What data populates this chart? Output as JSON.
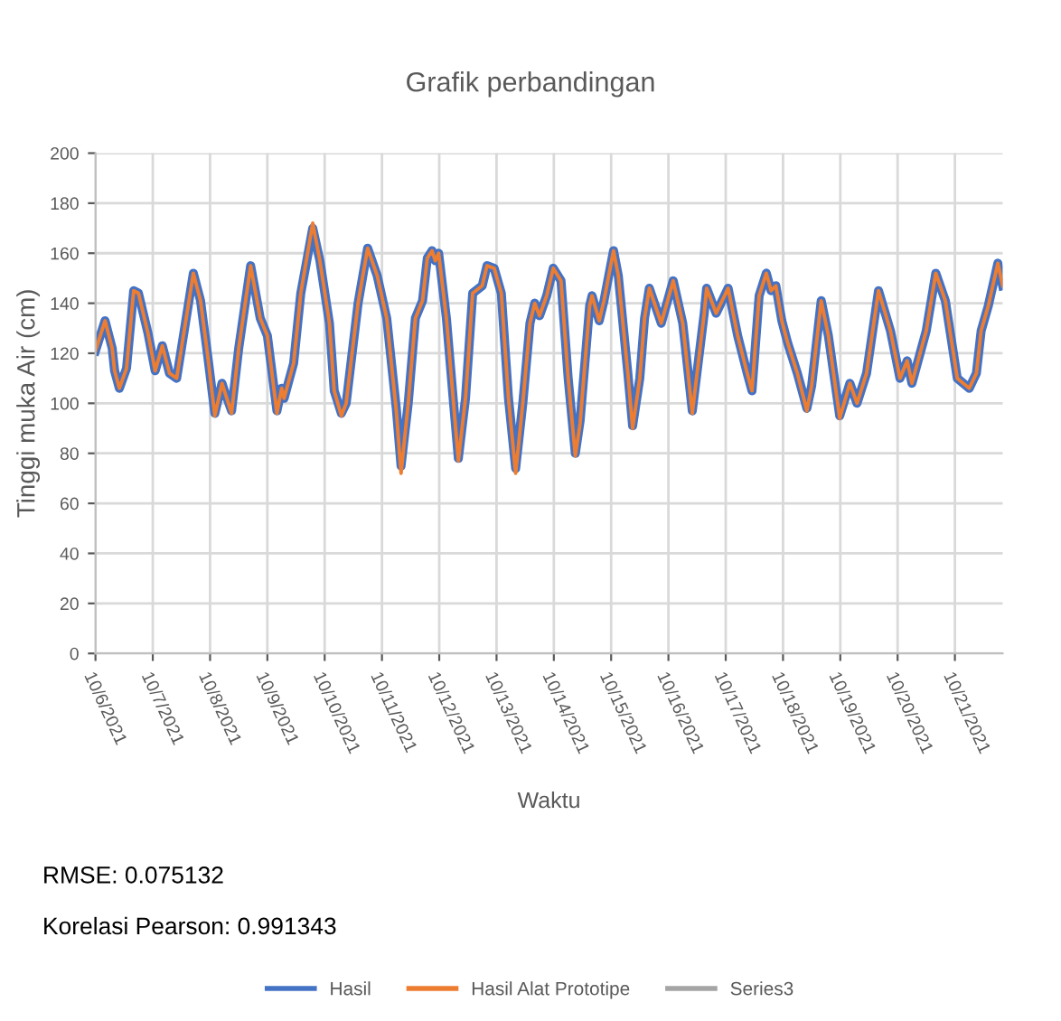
{
  "chart_data": {
    "type": "line",
    "title": "Grafik perbandingan",
    "xlabel": "Waktu",
    "ylabel": "Tinggi muka Air (cm)",
    "x": [
      "2021-10-06T00:00",
      "2021-10-06T04:00",
      "2021-10-06T07:00",
      "2021-10-06T08:00",
      "2021-10-06T10:00",
      "2021-10-06T13:00",
      "2021-10-06T16:00",
      "2021-10-06T18:00",
      "2021-10-06T22:00",
      "2021-10-07T01:00",
      "2021-10-07T04:00",
      "2021-10-07T07:00",
      "2021-10-07T10:00",
      "2021-10-07T12:00",
      "2021-10-07T17:00",
      "2021-10-07T20:00",
      "2021-10-07T23:00",
      "2021-10-08T02:00",
      "2021-10-08T05:00",
      "2021-10-08T06:00",
      "2021-10-08T09:00",
      "2021-10-08T12:00",
      "2021-10-08T17:00",
      "2021-10-08T21:00",
      "2021-10-09T00:00",
      "2021-10-09T04:00",
      "2021-10-09T06:00",
      "2021-10-09T07:00",
      "2021-10-09T11:00",
      "2021-10-09T14:00",
      "2021-10-09T19:00",
      "2021-10-09T22:00",
      "2021-10-10T02:00",
      "2021-10-10T04:00",
      "2021-10-10T07:00",
      "2021-10-10T09:00",
      "2021-10-10T14:00",
      "2021-10-10T18:00",
      "2021-10-10T22:00",
      "2021-10-11T02:00",
      "2021-10-11T06:00",
      "2021-10-11T08:00",
      "2021-10-11T11:00",
      "2021-10-11T14:00",
      "2021-10-11T17:00",
      "2021-10-11T19:00",
      "2021-10-11T21:00",
      "2021-10-11T22:20",
      "2021-10-11T23:45",
      "2021-10-12T03:00",
      "2021-10-12T06:00",
      "2021-10-12T08:00",
      "2021-10-12T11:00",
      "2021-10-12T14:00",
      "2021-10-12T18:00",
      "2021-10-12T20:00",
      "2021-10-12T23:00",
      "2021-10-13T02:00",
      "2021-10-13T05:00",
      "2021-10-13T08:00",
      "2021-10-13T11:00",
      "2021-10-13T14:00",
      "2021-10-13T16:00",
      "2021-10-13T18:00",
      "2021-10-13T21:00",
      "2021-10-13T23:45",
      "2021-10-14T03:00",
      "2021-10-14T06:00",
      "2021-10-14T09:00",
      "2021-10-14T11:00",
      "2021-10-14T15:00",
      "2021-10-14T16:00",
      "2021-10-14T19:00",
      "2021-10-14T21:00",
      "2021-10-15T01:00",
      "2021-10-15T03:00",
      "2021-10-15T07:00",
      "2021-10-15T09:00",
      "2021-10-15T12:00",
      "2021-10-15T14:00",
      "2021-10-15T16:00",
      "2021-10-15T21:00",
      "2021-10-16T02:00",
      "2021-10-16T06:00",
      "2021-10-16T10:00",
      "2021-10-16T15:00",
      "2021-10-16T16:00",
      "2021-10-16T20:00",
      "2021-10-17T01:00",
      "2021-10-17T05:00",
      "2021-10-17T09:00",
      "2021-10-17T11:00",
      "2021-10-17T14:00",
      "2021-10-17T17:00",
      "2021-10-17T19:00",
      "2021-10-17T21:00",
      "2021-10-17T23:30",
      "2021-10-18T02:00",
      "2021-10-18T06:00",
      "2021-10-18T10:00",
      "2021-10-18T12:00",
      "2021-10-18T16:00",
      "2021-10-18T19:00",
      "2021-10-18T23:45",
      "2021-10-19T04:00",
      "2021-10-19T07:00",
      "2021-10-19T11:00",
      "2021-10-19T16:00",
      "2021-10-19T21:00",
      "2021-10-20T01:00",
      "2021-10-20T04:00",
      "2021-10-20T06:00",
      "2021-10-20T12:00",
      "2021-10-20T16:00",
      "2021-10-20T20:00",
      "2021-10-21T01:00",
      "2021-10-21T06:00",
      "2021-10-21T09:00",
      "2021-10-21T11:00",
      "2021-10-21T14:00",
      "2021-10-21T18:00",
      "2021-10-21T20:00"
    ],
    "series": [
      {
        "name": "Hasil",
        "color": "#4472c4",
        "values": [
          121,
          133,
          122,
          113,
          106,
          114,
          145,
          144,
          128,
          113,
          123,
          112,
          110,
          122,
          152,
          141,
          119,
          96,
          108,
          105,
          97,
          122,
          155,
          134,
          127,
          97,
          106,
          102,
          116,
          144,
          170,
          157,
          132,
          105,
          96,
          100,
          140,
          162,
          151,
          134,
          98,
          75,
          100,
          134,
          141,
          158,
          161,
          157,
          160,
          134,
          100,
          78,
          102,
          144,
          147,
          155,
          154,
          144,
          102,
          74,
          100,
          132,
          140,
          135,
          143,
          154,
          149,
          110,
          80,
          93,
          139,
          143,
          133,
          141,
          161,
          151,
          112,
          91,
          110,
          134,
          146,
          132,
          149,
          132,
          97,
          136,
          146,
          136,
          146,
          127,
          112,
          105,
          143,
          152,
          145,
          147,
          133,
          124,
          112,
          98,
          107,
          141,
          127,
          95,
          108,
          100,
          112,
          145,
          129,
          110,
          117,
          108,
          129,
          152,
          141,
          110,
          106,
          112,
          129,
          139,
          156,
          147
        ]
      },
      {
        "name": "Hasil Alat Prototipe",
        "color": "#ed7d31",
        "values": [
          121,
          133,
          122,
          113,
          106,
          114,
          145,
          144,
          128,
          113,
          123,
          112,
          110,
          122,
          152,
          141,
          119,
          95,
          108,
          105,
          96,
          122,
          155,
          134,
          127,
          96,
          106,
          102,
          116,
          144,
          172,
          157,
          132,
          105,
          95,
          100,
          140,
          162,
          151,
          134,
          97,
          72,
          100,
          134,
          141,
          158,
          161,
          157,
          160,
          134,
          100,
          77,
          102,
          144,
          147,
          155,
          154,
          144,
          102,
          72,
          100,
          132,
          140,
          135,
          143,
          154,
          149,
          110,
          79,
          92,
          139,
          143,
          133,
          141,
          161,
          151,
          112,
          90,
          110,
          134,
          146,
          132,
          149,
          132,
          96,
          136,
          146,
          136,
          146,
          127,
          112,
          105,
          143,
          152,
          145,
          147,
          133,
          124,
          112,
          97,
          107,
          141,
          127,
          94,
          108,
          100,
          112,
          145,
          129,
          110,
          117,
          108,
          129,
          152,
          141,
          110,
          106,
          112,
          129,
          139,
          156,
          147
        ]
      },
      {
        "name": "Series3",
        "color": "#a5a5a5",
        "values": [
          null,
          null,
          null,
          null,
          null,
          null,
          null,
          null,
          null,
          null,
          null,
          null,
          null,
          null,
          null,
          null,
          null,
          null,
          null,
          null,
          null,
          null,
          null,
          null,
          null,
          null,
          null,
          null,
          null,
          null,
          null,
          null,
          null,
          null,
          null,
          null,
          null,
          null,
          null,
          null,
          null,
          null,
          null,
          null,
          null,
          null,
          null,
          null,
          null,
          null,
          null,
          null,
          null,
          null,
          null,
          null,
          null,
          null,
          null,
          null,
          null,
          null,
          null,
          null,
          null,
          null,
          null,
          null,
          null,
          null,
          null,
          null,
          null,
          null,
          null,
          null,
          null,
          null,
          null,
          null,
          null,
          null,
          null,
          null,
          null,
          null,
          null,
          null,
          null,
          null,
          null,
          null,
          null,
          null,
          null,
          null,
          null,
          null,
          null,
          null,
          null,
          null,
          null,
          null,
          null,
          null,
          null,
          null,
          null,
          null,
          null,
          null,
          null,
          null,
          null,
          null,
          null,
          null,
          null,
          null,
          null,
          null
        ]
      }
    ],
    "xlim": [
      "2021-10-06T00:00",
      "2021-10-21T20:00"
    ],
    "xticks": [
      {
        "value": "2021-10-06",
        "label": "10/6/2021"
      },
      {
        "value": "2021-10-07",
        "label": "10/7/2021"
      },
      {
        "value": "2021-10-08",
        "label": "10/8/2021"
      },
      {
        "value": "2021-10-09",
        "label": "10/9/2021"
      },
      {
        "value": "2021-10-10",
        "label": "10/10/2021"
      },
      {
        "value": "2021-10-11",
        "label": "10/11/2021"
      },
      {
        "value": "2021-10-12",
        "label": "10/12/2021"
      },
      {
        "value": "2021-10-13",
        "label": "10/13/2021"
      },
      {
        "value": "2021-10-14",
        "label": "10/14/2021"
      },
      {
        "value": "2021-10-15",
        "label": "10/15/2021"
      },
      {
        "value": "2021-10-16",
        "label": "10/16/2021"
      },
      {
        "value": "2021-10-17",
        "label": "10/17/2021"
      },
      {
        "value": "2021-10-18",
        "label": "10/18/2021"
      },
      {
        "value": "2021-10-19",
        "label": "10/19/2021"
      },
      {
        "value": "2021-10-20",
        "label": "10/20/2021"
      },
      {
        "value": "2021-10-21",
        "label": "10/21/2021"
      }
    ],
    "ylim": [
      0,
      200
    ],
    "yticks": [
      0,
      20,
      40,
      60,
      80,
      100,
      120,
      140,
      160,
      180,
      200
    ],
    "grid": true,
    "legend": "bottom",
    "marker": "none",
    "line_style": "solid",
    "annotations": [
      "RMSE: 0.075132",
      "Korelasi Pearson: 0.991343"
    ]
  }
}
